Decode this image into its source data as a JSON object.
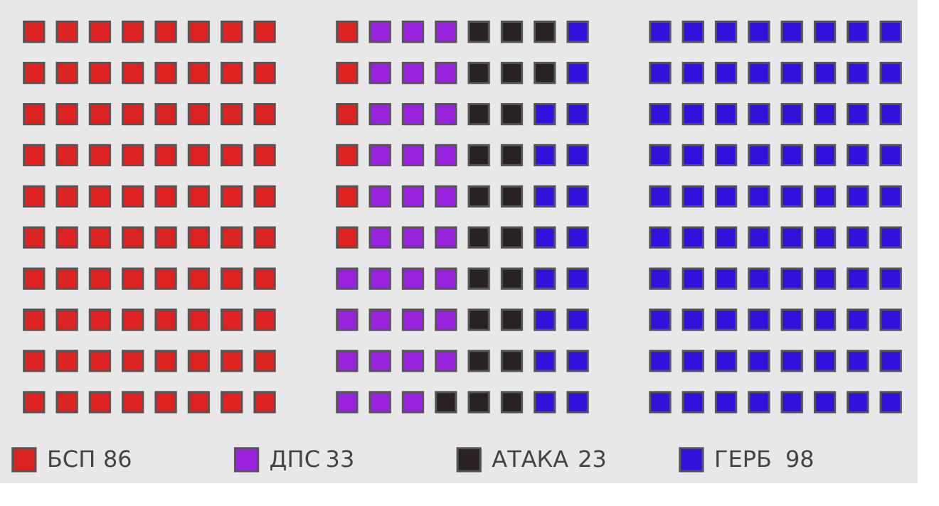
{
  "chart_data": {
    "type": "other",
    "categories": [
      "БСП",
      "ДПС",
      "АТАКА",
      "ГЕРБ"
    ],
    "values": [
      86,
      33,
      23,
      98
    ],
    "colors": [
      "#dd2222",
      "#9922dd",
      "#2a2222",
      "#3311dd"
    ],
    "data_labels": true
  }
}
